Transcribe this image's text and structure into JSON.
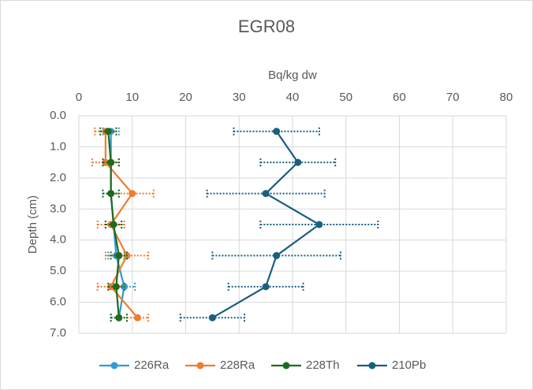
{
  "chart_data": {
    "type": "line",
    "title": "EGR08",
    "xlabel": "Bq/kg dw",
    "ylabel": "Depth (cm)",
    "y": [
      0.5,
      1.5,
      2.5,
      3.5,
      4.5,
      5.5,
      6.5
    ],
    "xlim": [
      0,
      80
    ],
    "xticks": [
      0,
      10,
      20,
      30,
      40,
      50,
      60,
      70,
      80
    ],
    "ylim": [
      0,
      7
    ],
    "yticks": [
      {
        "value": 0,
        "label": "0.0"
      },
      {
        "value": 1,
        "label": "1.0"
      },
      {
        "value": 2,
        "label": "2.0"
      },
      {
        "value": 3,
        "label": "3.0"
      },
      {
        "value": 4,
        "label": "4.0"
      },
      {
        "value": 5,
        "label": "5.0"
      },
      {
        "value": 6,
        "label": "6.0"
      },
      {
        "value": 7,
        "label": "7.0"
      }
    ],
    "y_inverted": true,
    "grid": true,
    "legend": "bottom",
    "series": [
      {
        "name": "226Ra",
        "color": "#2E9BD6",
        "values": [
          6,
          6,
          6,
          6.5,
          7,
          8.5,
          7.5
        ],
        "errors": [
          1.5,
          1.5,
          1.5,
          1.5,
          1.5,
          2,
          1.5
        ]
      },
      {
        "name": "228Ra",
        "color": "#ED7D31",
        "values": [
          5,
          5,
          10,
          6,
          9,
          6,
          11
        ],
        "errors": [
          2,
          2.5,
          4,
          2.5,
          4,
          2.5,
          2
        ]
      },
      {
        "name": "228Th",
        "color": "#1E6B1E",
        "values": [
          5.5,
          6,
          6,
          6.5,
          7.5,
          7,
          7.5
        ],
        "errors": [
          1.5,
          1.5,
          1.5,
          1.5,
          1.5,
          1.5,
          1.5
        ]
      },
      {
        "name": "210Pb",
        "color": "#1A5E80",
        "values": [
          37,
          41,
          35,
          45,
          37,
          35,
          25
        ],
        "errors": [
          8,
          7,
          11,
          11,
          12,
          7,
          6
        ]
      }
    ]
  }
}
